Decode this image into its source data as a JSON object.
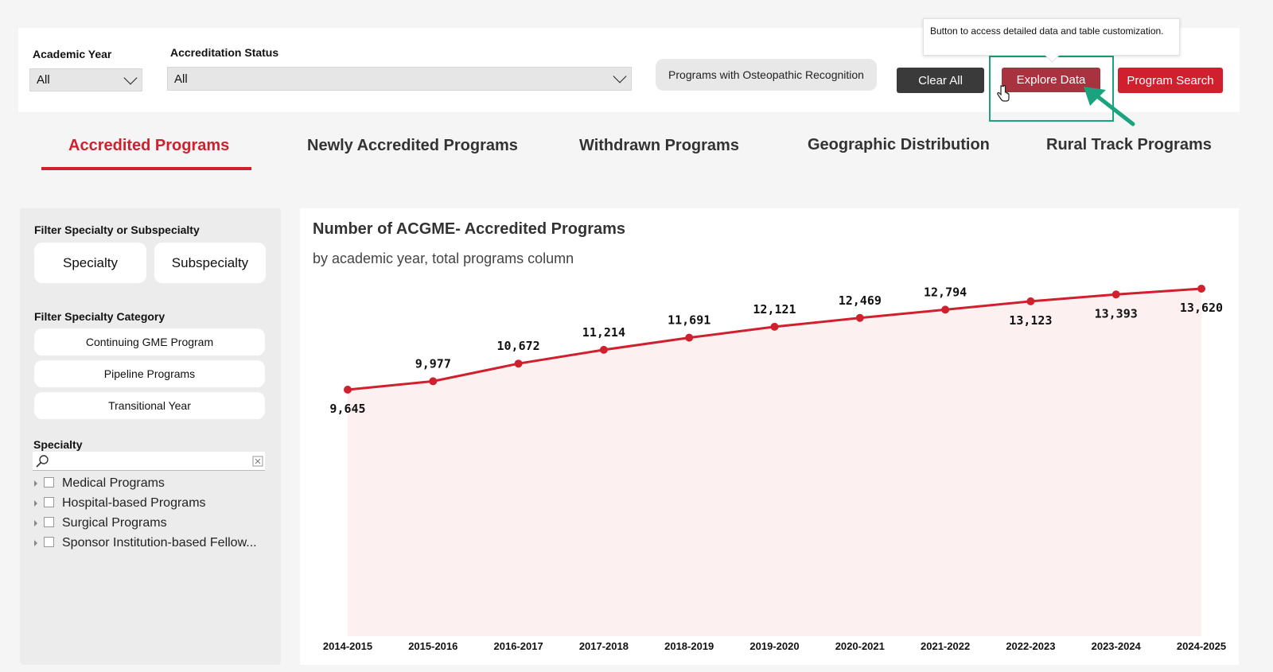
{
  "filters": {
    "academic_year": {
      "label": "Academic Year",
      "value": "All"
    },
    "accreditation_status": {
      "label": "Accreditation Status",
      "value": "All"
    }
  },
  "buttons": {
    "osteopathic": "Programs with Osteopathic Recognition",
    "clear_all": "Clear All",
    "explore_data": "Explore Data",
    "program_search": "Program Search"
  },
  "tooltip": "Button to access detailed data and table customization.",
  "tabs": [
    {
      "label": "Accredited Programs",
      "active": true
    },
    {
      "label": "Newly Accredited Programs",
      "active": false
    },
    {
      "label": "Withdrawn Programs",
      "active": false
    },
    {
      "label": "Geographic Distribution",
      "active": false
    },
    {
      "label": "Rural Track Programs",
      "active": false
    }
  ],
  "left_panel": {
    "filter_specialty_title": "Filter Specialty or Subspecialty",
    "specialty_btn": "Specialty",
    "subspecialty_btn": "Subspecialty",
    "category_title": "Filter Specialty Category",
    "categories": [
      "Continuing GME Program",
      "Pipeline Programs",
      "Transitional Year"
    ],
    "specialty_title": "Specialty",
    "tree_items": [
      "Medical Programs",
      "Hospital-based Programs",
      "Surgical Programs",
      "Sponsor Institution-based Fellow..."
    ]
  },
  "colors": {
    "accent": "#d0202e",
    "explore": "#a8333f",
    "area_fill": "#fdf0f1",
    "highlight": "#1aa37e"
  },
  "chart_data": {
    "type": "line",
    "title": "Number of ACGME- Accredited Programs",
    "subtitle": "by academic year, total programs column",
    "categories": [
      "2014-2015",
      "2015-2016",
      "2016-2017",
      "2017-2018",
      "2018-2019",
      "2019-2020",
      "2020-2021",
      "2021-2022",
      "2022-2023",
      "2023-2024",
      "2024-2025"
    ],
    "values": [
      9645,
      9977,
      10672,
      11214,
      11691,
      12121,
      12469,
      12794,
      13123,
      13393,
      13620
    ],
    "value_labels": [
      "9,645",
      "9,977",
      "10,672",
      "11,214",
      "11,691",
      "12,121",
      "12,469",
      "12,794",
      "13,123",
      "13,393",
      "13,620"
    ],
    "label_position": [
      "below",
      "above",
      "above",
      "above",
      "above",
      "above",
      "above",
      "above",
      "below",
      "below",
      "below"
    ]
  }
}
